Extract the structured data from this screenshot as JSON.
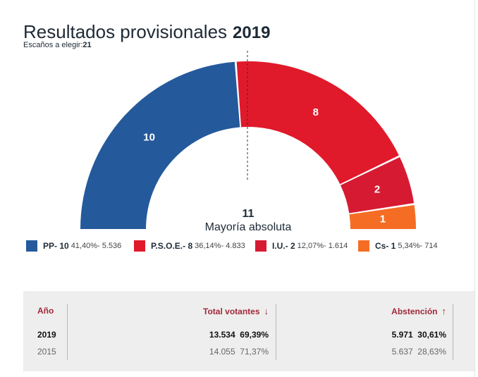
{
  "header": {
    "title": "Resultados provisionales",
    "year": "2019",
    "seats_label": "Escaños a elegir:",
    "seats_total": "21"
  },
  "majority": {
    "value": "11",
    "label": "Mayoría absoluta"
  },
  "chart_data": {
    "type": "pie",
    "subtype": "hemicycle",
    "total": 21,
    "series": [
      {
        "name": "PP",
        "seats": 10,
        "percent": "41,40%",
        "votes": "5.536",
        "color": "#245a9c"
      },
      {
        "name": "P.S.O.E.",
        "seats": 8,
        "percent": "36,14%",
        "votes": "4.833",
        "color": "#e01a2b"
      },
      {
        "name": "I.U.",
        "seats": 2,
        "percent": "12,07%",
        "votes": "1.614",
        "color": "#d61a32"
      },
      {
        "name": "Cs",
        "seats": 1,
        "percent": "5,34%",
        "votes": "714",
        "color": "#f56d24"
      }
    ]
  },
  "legend": [
    {
      "label": "PP- 10",
      "detail": "41,40%- 5.536",
      "color": "#245a9c"
    },
    {
      "label": "P.S.O.E.- 8",
      "detail": "36,14%- 4.833",
      "color": "#e01a2b"
    },
    {
      "label": "I.U.- 2",
      "detail": "12,07%- 1.614",
      "color": "#d61a32"
    },
    {
      "label": "Cs- 1",
      "detail": "5,34%- 714",
      "color": "#f56d24"
    }
  ],
  "table": {
    "headers": {
      "year": "Año",
      "voters": "Total votantes",
      "voters_arrow": "↓",
      "abstention": "Abstención",
      "abstention_arrow": "↑"
    },
    "rows": [
      {
        "year": "2019",
        "voters": "13.534",
        "voters_pct": "69,39%",
        "abstention": "5.971",
        "abstention_pct": "30,61%"
      },
      {
        "year": "2015",
        "voters": "14.055",
        "voters_pct": "71,37%",
        "abstention": "5.637",
        "abstention_pct": "28,63%"
      }
    ]
  }
}
